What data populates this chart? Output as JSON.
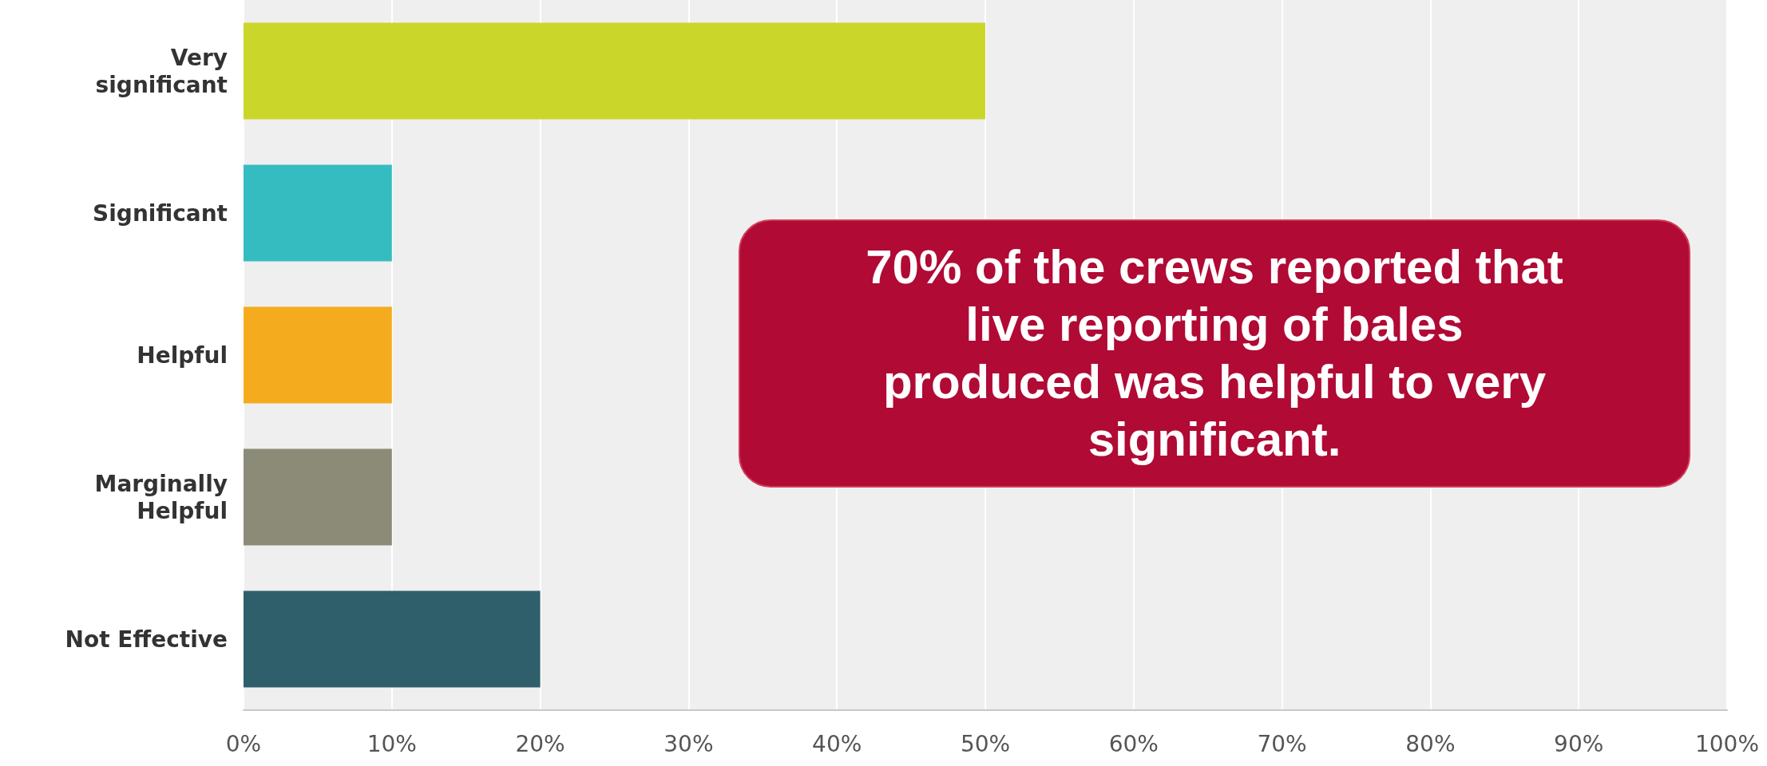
{
  "chart_data": {
    "type": "bar",
    "orientation": "horizontal",
    "categories": [
      "Very\nsignificant",
      "Significant",
      "Helpful",
      "Marginally\nHelpful",
      "Not Effective"
    ],
    "values": [
      50,
      10,
      10,
      10,
      20
    ],
    "colors": [
      "#cbd62b",
      "#35bcc0",
      "#f4ac1e",
      "#8b8b78",
      "#2f5f6b"
    ],
    "xlim": [
      0,
      100
    ],
    "xticks": [
      {
        "value": 0,
        "label": "0%"
      },
      {
        "value": 10,
        "label": "10%"
      },
      {
        "value": 20,
        "label": "20%"
      },
      {
        "value": 30,
        "label": "30%"
      },
      {
        "value": 40,
        "label": "40%"
      },
      {
        "value": 50,
        "label": "50%"
      },
      {
        "value": 60,
        "label": "60%"
      },
      {
        "value": 70,
        "label": "70%"
      },
      {
        "value": 80,
        "label": "80%"
      },
      {
        "value": 90,
        "label": "90%"
      },
      {
        "value": 100,
        "label": "100%"
      }
    ],
    "grid": "x",
    "annotations": [
      "70% of the crews reported that live reporting of bales produced was helpful to very significant."
    ]
  }
}
